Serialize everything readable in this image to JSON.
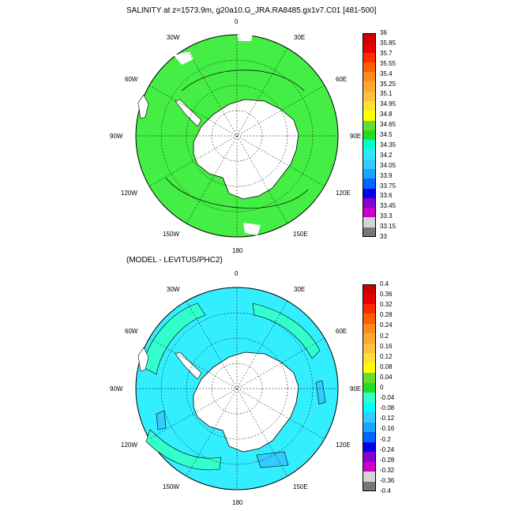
{
  "top_panel": {
    "title": "SALINITY at z=1573.9m, g20a10.G_JRA.RA8485.gx1v7.C01 [481-500]",
    "longitude_labels": {
      "lon_0": "0",
      "lon_30e": "30E",
      "lon_60e": "60E",
      "lon_90e": "90E",
      "lon_120e": "120E",
      "lon_150e": "150E",
      "lon_180": "180",
      "lon_150w": "150W",
      "lon_120w": "120W",
      "lon_90w": "90W",
      "lon_60w": "60W",
      "lon_30w": "30W"
    },
    "colorbar": {
      "labels": [
        "36",
        "35.85",
        "35.7",
        "35.55",
        "35.4",
        "35.25",
        "35.1",
        "34.95",
        "34.8",
        "34.65",
        "34.5",
        "34.35",
        "34.2",
        "34.05",
        "33.9",
        "33.75",
        "33.6",
        "33.45",
        "33.3",
        "33.15",
        "33"
      ],
      "colors": [
        "#cc0000",
        "#e60000",
        "#ff2a00",
        "#ff5e00",
        "#ff8c1a",
        "#ffa733",
        "#ffbf40",
        "#ffe133",
        "#ffff00",
        "#66dd33",
        "#22dd22",
        "#00ffcc",
        "#33e6ff",
        "#33ccff",
        "#1aa3ff",
        "#0066ff",
        "#0000e6",
        "#8800cc",
        "#cc00cc",
        "#d4d4d4",
        "#777777"
      ]
    }
  },
  "bottom_panel": {
    "title": "(MODEL - LEVITUS/PHC2)",
    "longitude_labels": {
      "lon_0": "0",
      "lon_30e": "30E",
      "lon_60e": "60E",
      "lon_90e": "90E",
      "lon_120e": "120E",
      "lon_150e": "150E",
      "lon_180": "180",
      "lon_150w": "150W",
      "lon_120w": "120W",
      "lon_90w": "90W",
      "lon_60w": "60W",
      "lon_30w": "30W"
    },
    "colorbar": {
      "labels": [
        "0.4",
        "0.36",
        "0.32",
        "0.28",
        "0.24",
        "0.2",
        "0.16",
        "0.12",
        "0.08",
        "0.04",
        "0",
        "-0.04",
        "-0.08",
        "-0.12",
        "-0.16",
        "-0.2",
        "-0.24",
        "-0.28",
        "-0.32",
        "-0.36",
        "-0.4"
      ],
      "colors": [
        "#cc0000",
        "#e60000",
        "#ff2a00",
        "#ff5e00",
        "#ff8c1a",
        "#ffa733",
        "#ffbf40",
        "#ffe133",
        "#ffff00",
        "#66dd33",
        "#22dd22",
        "#33ffcc",
        "#00ffff",
        "#33ccff",
        "#1aa3ff",
        "#0066ff",
        "#0000e6",
        "#8800cc",
        "#cc00cc",
        "#d4d4d4",
        "#777777"
      ]
    }
  },
  "colors": {
    "land": "#ffffff",
    "top_main_fill": "#44ee44",
    "bottom_main_fill": "#33eeff",
    "bottom_secondary_fill": "#33ffcc",
    "contour": "#000000"
  }
}
